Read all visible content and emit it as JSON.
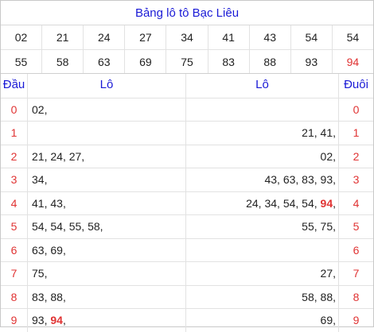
{
  "title": "Bảng lô tô Bạc Liêu",
  "numbers_row1": [
    "02",
    "21",
    "24",
    "27",
    "34",
    "41",
    "43",
    "54",
    "54"
  ],
  "numbers_row2": [
    "55",
    "58",
    "63",
    "69",
    "75",
    "83",
    "88",
    "93",
    "94"
  ],
  "highlight_number": "94",
  "headers": {
    "dau": "Đầu",
    "lo_left": "Lô",
    "lo_right": "Lô",
    "duoi": "Đuôi"
  },
  "rows": [
    {
      "dau": "0",
      "left": [
        "02"
      ],
      "right": [],
      "duoi": "0"
    },
    {
      "dau": "1",
      "left": [],
      "right": [
        "21",
        "41"
      ],
      "duoi": "1"
    },
    {
      "dau": "2",
      "left": [
        "21",
        "24",
        "27"
      ],
      "right": [
        "02"
      ],
      "duoi": "2"
    },
    {
      "dau": "3",
      "left": [
        "34"
      ],
      "right": [
        "43",
        "63",
        "83",
        "93"
      ],
      "duoi": "3"
    },
    {
      "dau": "4",
      "left": [
        "41",
        "43"
      ],
      "right": [
        "24",
        "34",
        "54",
        "54",
        "94"
      ],
      "duoi": "4"
    },
    {
      "dau": "5",
      "left": [
        "54",
        "54",
        "55",
        "58"
      ],
      "right": [
        "55",
        "75"
      ],
      "duoi": "5"
    },
    {
      "dau": "6",
      "left": [
        "63",
        "69"
      ],
      "right": [],
      "duoi": "6"
    },
    {
      "dau": "7",
      "left": [
        "75"
      ],
      "right": [
        "27"
      ],
      "duoi": "7"
    },
    {
      "dau": "8",
      "left": [
        "83",
        "88"
      ],
      "right": [
        "58",
        "88"
      ],
      "duoi": "8"
    },
    {
      "dau": "9",
      "left": [
        "93",
        "94"
      ],
      "right": [
        "69"
      ],
      "duoi": "9"
    }
  ],
  "colors": {
    "title": "#1a1ad6",
    "highlight": "#e03333"
  }
}
